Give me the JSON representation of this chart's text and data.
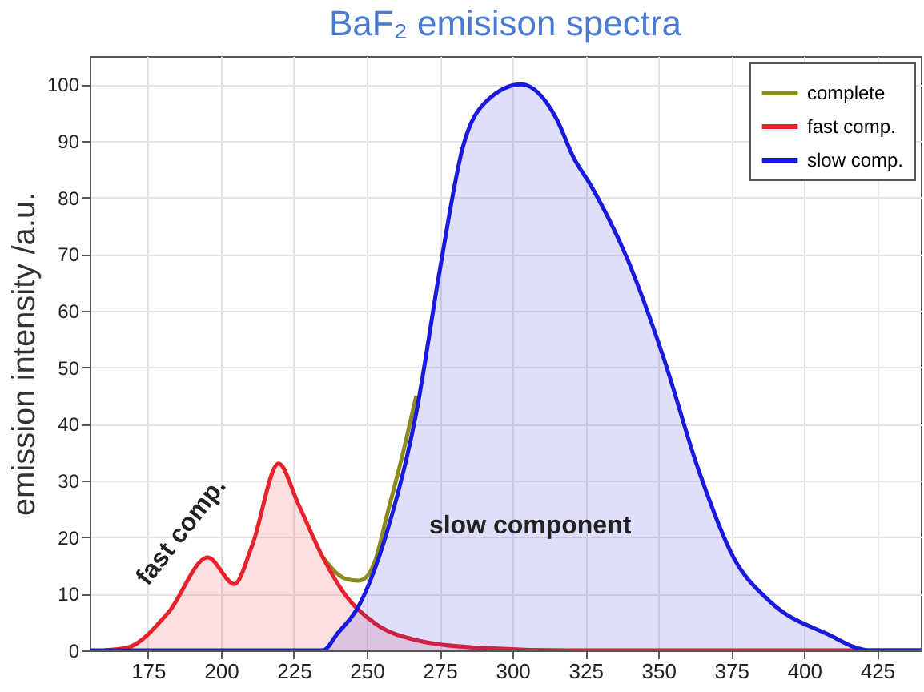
{
  "chart_data": {
    "type": "area",
    "title": "BaF₂ emisison spectra",
    "ylabel": "emission intensity /a.u.",
    "xlim": [
      155,
      440
    ],
    "ylim": [
      0,
      105
    ],
    "xticks": [
      175,
      200,
      225,
      250,
      275,
      300,
      325,
      350,
      375,
      400,
      425
    ],
    "yticks": [
      0,
      10,
      20,
      30,
      40,
      50,
      60,
      70,
      80,
      90,
      100
    ],
    "grid": true,
    "legend": "top right",
    "annotations": [
      "fast comp.",
      "slow component"
    ],
    "series": [
      {
        "name": "complete",
        "type": "line",
        "color": "#8c8c1e",
        "x": [
          235,
          240,
          243,
          247,
          250,
          253,
          257,
          262,
          267
        ],
        "values": [
          16.4,
          13.5,
          12.6,
          12.3,
          13,
          16,
          24,
          34,
          45
        ]
      },
      {
        "name": "fast comp.",
        "color": "#e8222a",
        "x": [
          160,
          168,
          182,
          195.5,
          204.6,
          210.7,
          219.8,
          226.4,
          235,
          242.8,
          253,
          267,
          287,
          320,
          440
        ],
        "values": [
          0,
          0.5,
          6.7,
          16.4,
          11.7,
          18.5,
          33,
          26,
          16.4,
          9.7,
          4.7,
          1.8,
          0.5,
          0,
          0
        ]
      },
      {
        "name": "slow comp.",
        "color": "#1a1adc",
        "x": [
          155,
          235,
          240,
          247,
          257,
          267,
          275,
          283,
          291,
          303,
          315,
          321,
          327,
          339.5,
          351.6,
          363.7,
          375.8,
          387.9,
          407.9,
          422.4,
          440
        ],
        "values": [
          0,
          0,
          3,
          7.6,
          21,
          42,
          67,
          89,
          97,
          100,
          94,
          87,
          82,
          69,
          52,
          32,
          16.4,
          8.8,
          2.9,
          0,
          0
        ]
      }
    ]
  }
}
